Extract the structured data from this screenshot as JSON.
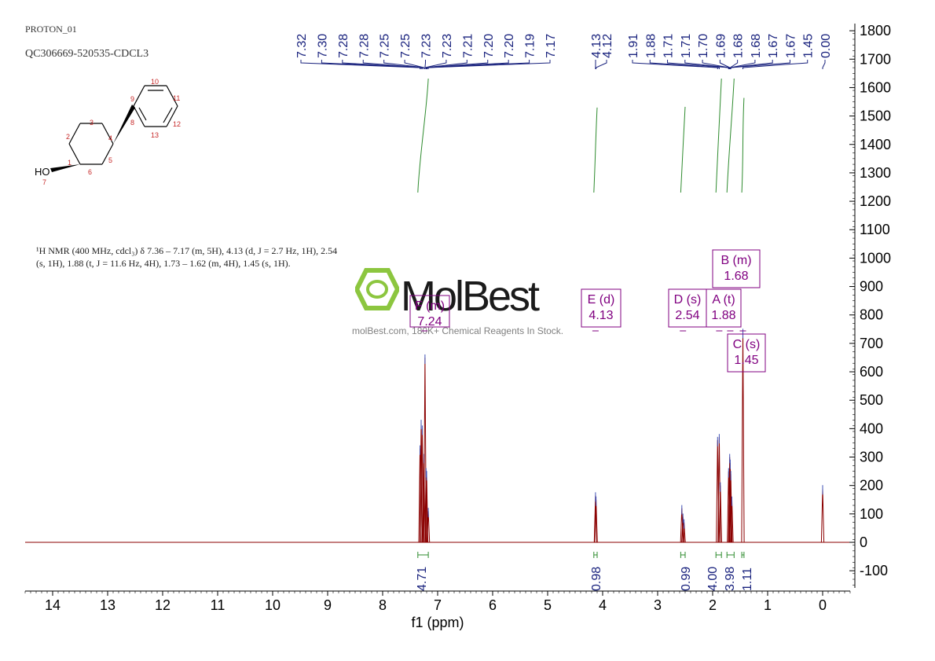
{
  "header": {
    "sample_id": "PROTON_01",
    "experiment_id": "QC306669-520535-CDCL3"
  },
  "nmr_description": "¹H NMR (400 MHz, cdcl₃) δ 7.36 – 7.17 (m, 5H), 4.13 (d, J = 2.7 Hz, 1H), 2.54 (s, 1H), 1.88 (t, J = 11.6 Hz, 4H), 1.73 – 1.62 (m, 4H), 1.45 (s, 1H).",
  "watermark": {
    "brand": "MolBest",
    "tagline": "molBest.com, 180K+ Chemical Reagents In Stock."
  },
  "structure": {
    "hydroxyl_label": "HO",
    "atom_labels": [
      "1",
      "2",
      "3",
      "4",
      "5",
      "6",
      "7",
      "8",
      "9",
      "10",
      "11",
      "12",
      "13"
    ]
  },
  "colors": {
    "spectrum": "#8b0000",
    "peak_labels": "#1a237e",
    "integration": "#2e8b2e",
    "multiplet_boxes": "#800080",
    "atom_numbers": "#c62828",
    "logo_green": "#8cc63f"
  },
  "chart_data": {
    "type": "line",
    "xlabel": "f1 (ppm)",
    "ylabel": "",
    "title": "",
    "xlim": [
      14.5,
      -0.5
    ],
    "ylim": [
      -160,
      1820
    ],
    "x_ticks": [
      14,
      13,
      12,
      11,
      10,
      9,
      8,
      7,
      6,
      5,
      4,
      3,
      2,
      1,
      0
    ],
    "y_ticks": [
      1800,
      1700,
      1600,
      1500,
      1400,
      1300,
      1200,
      1100,
      1000,
      900,
      800,
      700,
      600,
      500,
      400,
      300,
      200,
      100,
      0,
      -100
    ],
    "x_axis_reversed": true,
    "y_axis_position": "right",
    "peak_label_groups": [
      {
        "labels": [
          "7.32",
          "7.30",
          "7.28",
          "7.28",
          "7.25",
          "7.25",
          "7.23",
          "7.23",
          "7.21",
          "7.20",
          "7.20",
          "7.19",
          "7.17"
        ],
        "ppm": [
          7.32,
          7.3,
          7.28,
          7.28,
          7.25,
          7.25,
          7.23,
          7.23,
          7.21,
          7.2,
          7.2,
          7.19,
          7.17
        ]
      },
      {
        "labels": [
          "4.13",
          "4.12"
        ],
        "ppm": [
          4.13,
          4.12
        ]
      },
      {
        "labels": [
          "1.91",
          "1.88",
          "1.71",
          "1.71",
          "1.70",
          "1.69",
          "1.68",
          "1.68",
          "1.67",
          "1.67",
          "1.45",
          "0.00"
        ],
        "ppm": [
          1.91,
          1.88,
          1.71,
          1.71,
          1.7,
          1.69,
          1.68,
          1.68,
          1.67,
          1.67,
          1.45,
          0.0
        ]
      }
    ],
    "peaks": [
      {
        "ppm": 7.32,
        "height": 330
      },
      {
        "ppm": 7.3,
        "height": 420
      },
      {
        "ppm": 7.28,
        "height": 400
      },
      {
        "ppm": 7.25,
        "height": 300
      },
      {
        "ppm": 7.23,
        "height": 650
      },
      {
        "ppm": 7.21,
        "height": 250
      },
      {
        "ppm": 7.2,
        "height": 240
      },
      {
        "ppm": 7.17,
        "height": 110
      },
      {
        "ppm": 4.13,
        "height": 165
      },
      {
        "ppm": 4.12,
        "height": 150
      },
      {
        "ppm": 2.56,
        "height": 120
      },
      {
        "ppm": 2.54,
        "height": 90
      },
      {
        "ppm": 2.52,
        "height": 70
      },
      {
        "ppm": 1.91,
        "height": 360
      },
      {
        "ppm": 1.88,
        "height": 370
      },
      {
        "ppm": 1.86,
        "height": 200
      },
      {
        "ppm": 1.71,
        "height": 250
      },
      {
        "ppm": 1.69,
        "height": 300
      },
      {
        "ppm": 1.68,
        "height": 280
      },
      {
        "ppm": 1.67,
        "height": 240
      },
      {
        "ppm": 1.65,
        "height": 150
      },
      {
        "ppm": 1.45,
        "height": 740
      },
      {
        "ppm": 0.0,
        "height": 190
      }
    ],
    "multiplets": [
      {
        "label": "F (m)",
        "value": "7.24",
        "ppm": 7.24
      },
      {
        "label": "E (d)",
        "value": "4.13",
        "ppm": 4.13
      },
      {
        "label": "D (s)",
        "value": "2.54",
        "ppm": 2.54
      },
      {
        "label": "A (t)",
        "value": "1.88",
        "ppm": 1.88
      },
      {
        "label": "B (m)",
        "value": "1.68",
        "ppm": 1.68
      },
      {
        "label": "C (s)",
        "value": "1.45",
        "ppm": 1.45
      }
    ],
    "integrals": [
      {
        "value": "4.71",
        "ppm": 7.24,
        "range": [
          7.36,
          7.17
        ]
      },
      {
        "value": "0.98",
        "ppm": 4.13,
        "range": [
          4.16,
          4.1
        ]
      },
      {
        "value": "0.99",
        "ppm": 2.54,
        "range": [
          2.58,
          2.5
        ]
      },
      {
        "value": "4.00",
        "ppm": 1.88,
        "range": [
          1.94,
          1.84
        ]
      },
      {
        "value": "3.98",
        "ppm": 1.68,
        "range": [
          1.74,
          1.61
        ]
      },
      {
        "value": "1.11",
        "ppm": 1.45,
        "range": [
          1.47,
          1.43
        ]
      }
    ]
  }
}
